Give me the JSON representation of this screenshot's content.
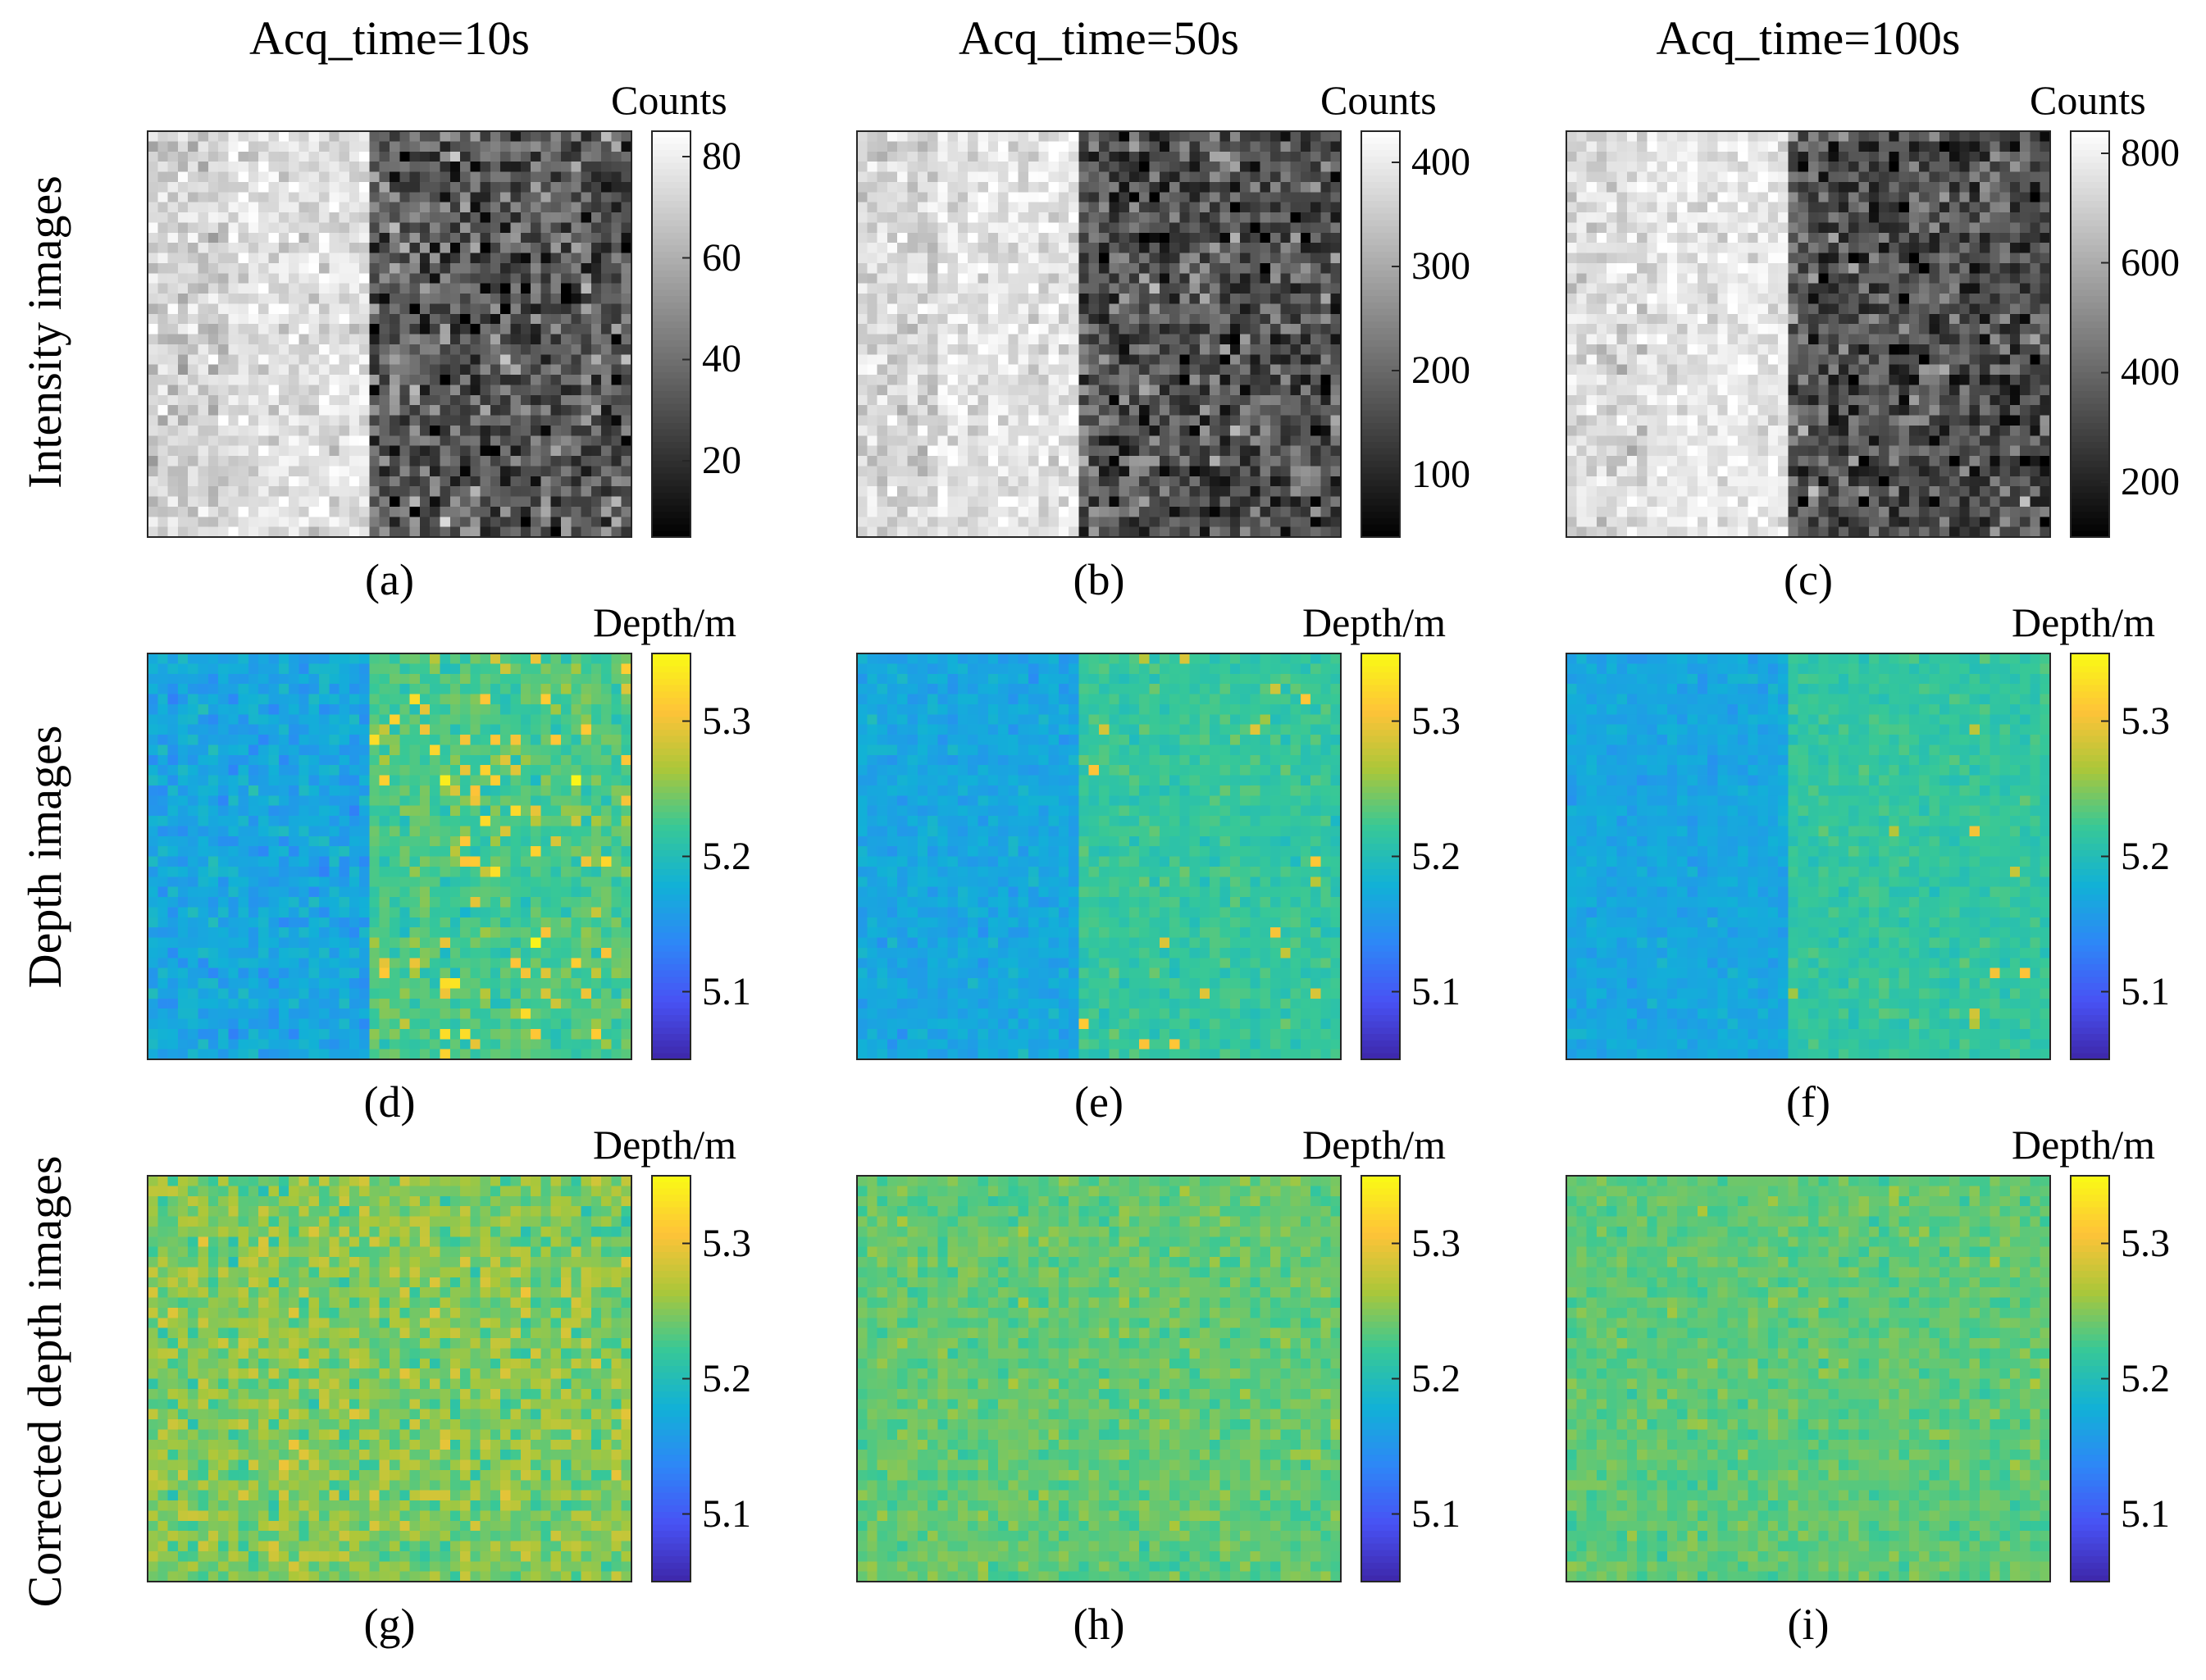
{
  "chart_data": {
    "type": "heatmap",
    "column_titles": [
      "Acq_time=10s",
      "Acq_time=50s",
      "Acq_time=100s"
    ],
    "row_titles": [
      "Intensity images",
      "Depth images",
      "Corrected depth images"
    ],
    "grid": {
      "rows": 40,
      "cols": 48,
      "boundary_col": 22
    },
    "panels": [
      {
        "id": "a",
        "label": "(a)",
        "row": 0,
        "col": 0,
        "kind": "intensity",
        "colorbar_title": "Counts",
        "clim": [
          5,
          85
        ],
        "ticks": [
          20,
          40,
          60,
          80
        ],
        "left_mean": 76,
        "right_mean": 32,
        "noise": 10
      },
      {
        "id": "b",
        "label": "(b)",
        "row": 0,
        "col": 1,
        "kind": "intensity",
        "colorbar_title": "Counts",
        "clim": [
          40,
          430
        ],
        "ticks": [
          100,
          200,
          300,
          400
        ],
        "left_mean": 390,
        "right_mean": 165,
        "noise": 45
      },
      {
        "id": "c",
        "label": "(c)",
        "row": 0,
        "col": 2,
        "kind": "intensity",
        "colorbar_title": "Counts",
        "clim": [
          100,
          840
        ],
        "ticks": [
          200,
          400,
          600,
          800
        ],
        "left_mean": 775,
        "right_mean": 330,
        "noise": 80
      },
      {
        "id": "d",
        "label": "(d)",
        "row": 1,
        "col": 0,
        "kind": "depth",
        "colorbar_title": "Depth/m",
        "clim": [
          5.05,
          5.35
        ],
        "ticks": [
          5.1,
          5.2,
          5.3
        ],
        "left_mean": 5.168,
        "right_mean": 5.228,
        "noise": 0.014,
        "outliers": 0.07
      },
      {
        "id": "e",
        "label": "(e)",
        "row": 1,
        "col": 1,
        "kind": "depth",
        "colorbar_title": "Depth/m",
        "clim": [
          5.05,
          5.35
        ],
        "ticks": [
          5.1,
          5.2,
          5.3
        ],
        "left_mean": 5.168,
        "right_mean": 5.218,
        "noise": 0.009,
        "outliers": 0.02
      },
      {
        "id": "f",
        "label": "(f)",
        "row": 1,
        "col": 2,
        "kind": "depth",
        "colorbar_title": "Depth/m",
        "clim": [
          5.05,
          5.35
        ],
        "ticks": [
          5.1,
          5.2,
          5.3
        ],
        "left_mean": 5.168,
        "right_mean": 5.216,
        "noise": 0.008,
        "outliers": 0.01
      },
      {
        "id": "g",
        "label": "(g)",
        "row": 2,
        "col": 0,
        "kind": "corrected",
        "colorbar_title": "Depth/m",
        "clim": [
          5.05,
          5.35
        ],
        "ticks": [
          5.1,
          5.2,
          5.3
        ],
        "left_mean": 5.25,
        "right_mean": 5.25,
        "noise": 0.018,
        "outliers": 0
      },
      {
        "id": "h",
        "label": "(h)",
        "row": 2,
        "col": 1,
        "kind": "corrected",
        "colorbar_title": "Depth/m",
        "clim": [
          5.05,
          5.35
        ],
        "ticks": [
          5.1,
          5.2,
          5.3
        ],
        "left_mean": 5.238,
        "right_mean": 5.238,
        "noise": 0.01,
        "outliers": 0
      },
      {
        "id": "i",
        "label": "(i)",
        "row": 2,
        "col": 2,
        "kind": "corrected",
        "colorbar_title": "Depth/m",
        "clim": [
          5.05,
          5.35
        ],
        "ticks": [
          5.1,
          5.2,
          5.3
        ],
        "left_mean": 5.236,
        "right_mean": 5.236,
        "noise": 0.009,
        "outliers": 0
      }
    ]
  }
}
